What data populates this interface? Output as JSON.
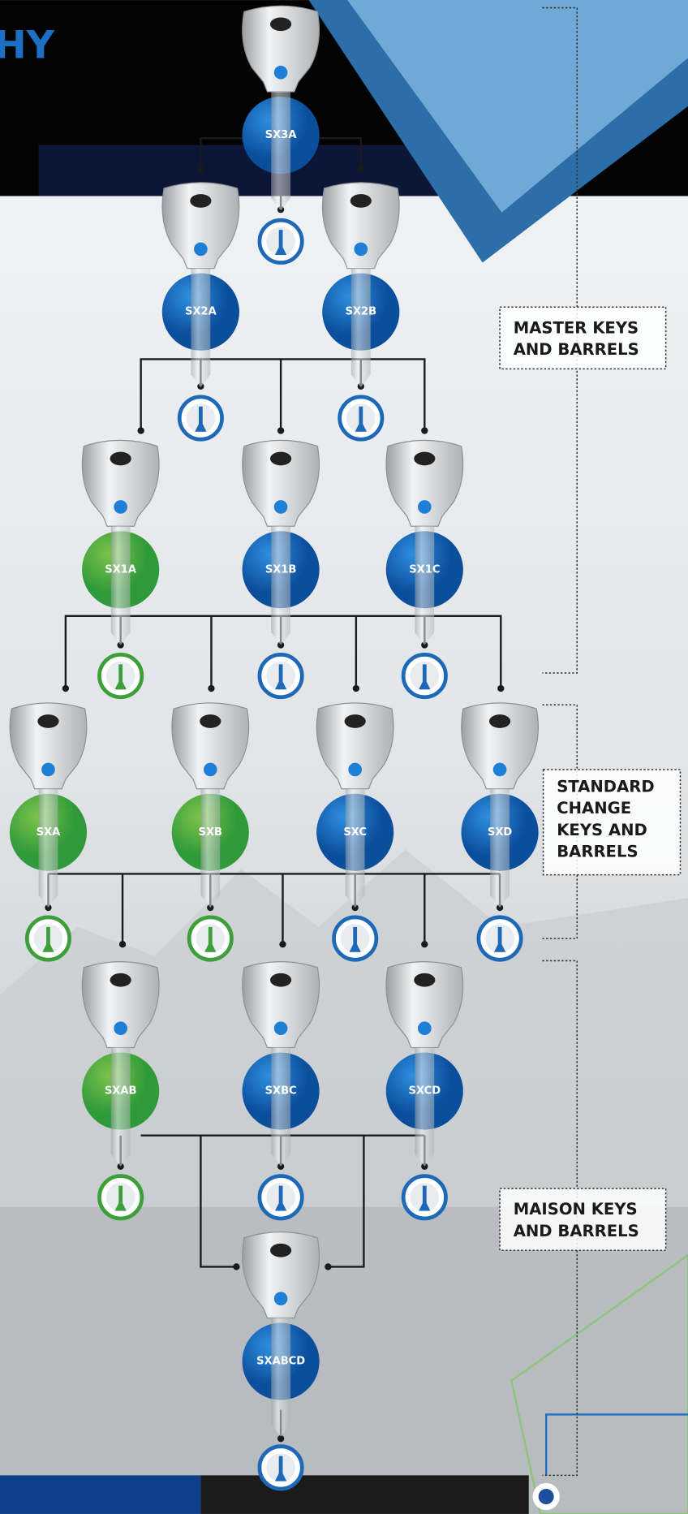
{
  "header": {
    "title": "HY"
  },
  "nodes": [
    {
      "label": "SX3A"
    },
    {
      "label": "SX2A"
    },
    {
      "label": "SX2B"
    },
    {
      "label": "SX1A"
    },
    {
      "label": "SX1B"
    },
    {
      "label": "SX1C"
    },
    {
      "label": "SXA"
    },
    {
      "label": "SXB"
    },
    {
      "label": "SXC"
    },
    {
      "label": "SXD"
    },
    {
      "label": "SXAB"
    },
    {
      "label": "SXBC"
    },
    {
      "label": "SXCD"
    },
    {
      "label": "SXABCD"
    }
  ],
  "groups": [
    {
      "lines": [
        "MASTER KEYS",
        "AND BARRELS"
      ]
    },
    {
      "lines": [
        "STANDARD",
        "CHANGE",
        "KEYS AND",
        "BARRELS"
      ]
    },
    {
      "lines": [
        "MAISON KEYS",
        "AND BARRELS"
      ]
    }
  ]
}
